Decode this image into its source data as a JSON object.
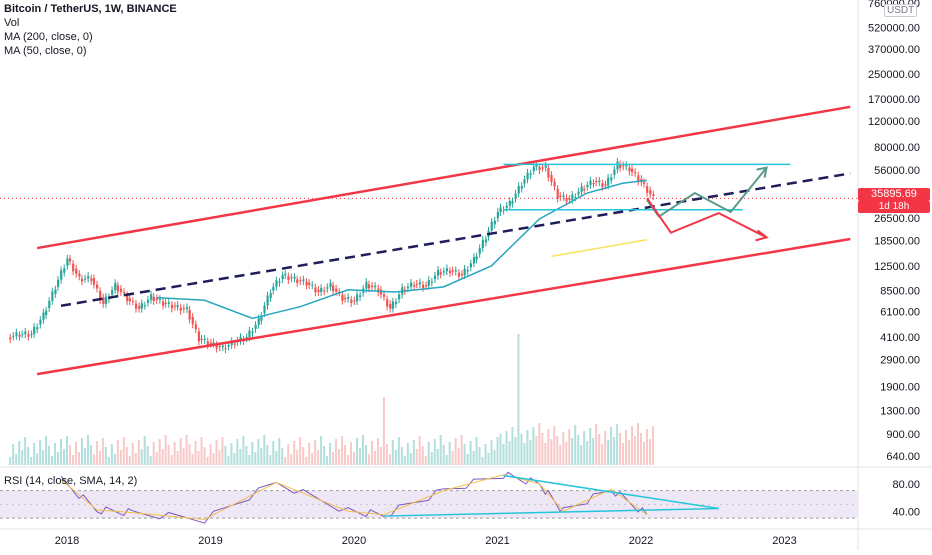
{
  "chart_data": [
    {
      "type": "candlestick",
      "title": "Bitcoin / TetherUS, 1W, BINANCE",
      "indicators": [
        "Vol",
        "MA (200, close, 0)",
        "MA (50, close, 0)"
      ],
      "y_scale": "log",
      "ylim": [
        640,
        760000
      ],
      "price_axis_ticks": [
        "760000.00",
        "520000.00",
        "370000.00",
        "250000.00",
        "170000.00",
        "120000.00",
        "80000.00",
        "56000.00",
        "37000.00",
        "26500.00",
        "18500.00",
        "12500.00",
        "8500.00",
        "6100.00",
        "4100.00",
        "2900.00",
        "1900.00",
        "1300.00",
        "900.00",
        "640.00"
      ],
      "x_ticks": [
        "2018",
        "2019",
        "2020",
        "2021",
        "2022",
        "2023"
      ],
      "currency_label": "USDT",
      "current_price": "35895.69",
      "countdown": "1d 18h",
      "price_series_approx": [
        {
          "date": "2017-08",
          "close": 4300
        },
        {
          "date": "2017-09",
          "close": 4300
        },
        {
          "date": "2017-10",
          "close": 5800
        },
        {
          "date": "2017-11",
          "close": 9000
        },
        {
          "date": "2017-12",
          "close": 14000
        },
        {
          "date": "2018-01",
          "close": 10200
        },
        {
          "date": "2018-02",
          "close": 10300
        },
        {
          "date": "2018-03",
          "close": 6900
        },
        {
          "date": "2018-04",
          "close": 9200
        },
        {
          "date": "2018-05",
          "close": 7500
        },
        {
          "date": "2018-06",
          "close": 6400
        },
        {
          "date": "2018-07",
          "close": 7700
        },
        {
          "date": "2018-08",
          "close": 7000
        },
        {
          "date": "2018-09",
          "close": 6600
        },
        {
          "date": "2018-10",
          "close": 6300
        },
        {
          "date": "2018-11",
          "close": 4000
        },
        {
          "date": "2018-12",
          "close": 3700
        },
        {
          "date": "2019-01",
          "close": 3450
        },
        {
          "date": "2019-02",
          "close": 3800
        },
        {
          "date": "2019-03",
          "close": 4100
        },
        {
          "date": "2019-04",
          "close": 5300
        },
        {
          "date": "2019-05",
          "close": 8500
        },
        {
          "date": "2019-06",
          "close": 10800
        },
        {
          "date": "2019-07",
          "close": 10100
        },
        {
          "date": "2019-08",
          "close": 9600
        },
        {
          "date": "2019-09",
          "close": 8300
        },
        {
          "date": "2019-10",
          "close": 9200
        },
        {
          "date": "2019-11",
          "close": 7550
        },
        {
          "date": "2019-12",
          "close": 7200
        },
        {
          "date": "2020-01",
          "close": 9350
        },
        {
          "date": "2020-02",
          "close": 8600
        },
        {
          "date": "2020-03",
          "close": 6400
        },
        {
          "date": "2020-04",
          "close": 8600
        },
        {
          "date": "2020-05",
          "close": 9450
        },
        {
          "date": "2020-06",
          "close": 9150
        },
        {
          "date": "2020-07",
          "close": 11300
        },
        {
          "date": "2020-08",
          "close": 11650
        },
        {
          "date": "2020-09",
          "close": 10800
        },
        {
          "date": "2020-10",
          "close": 13800
        },
        {
          "date": "2020-11",
          "close": 19700
        },
        {
          "date": "2020-12",
          "close": 29000
        },
        {
          "date": "2021-01",
          "close": 33100
        },
        {
          "date": "2021-02",
          "close": 45200
        },
        {
          "date": "2021-03",
          "close": 58800
        },
        {
          "date": "2021-04",
          "close": 57700
        },
        {
          "date": "2021-05",
          "close": 37300
        },
        {
          "date": "2021-06",
          "close": 35000
        },
        {
          "date": "2021-07",
          "close": 41500
        },
        {
          "date": "2021-08",
          "close": 47100
        },
        {
          "date": "2021-09",
          "close": 43800
        },
        {
          "date": "2021-10",
          "close": 61300
        },
        {
          "date": "2021-11",
          "close": 57000
        },
        {
          "date": "2021-12",
          "close": 46200
        },
        {
          "date": "2022-01",
          "close": 35895.69
        }
      ],
      "ma50_approx": [
        {
          "date": "2018-08",
          "v": 7600
        },
        {
          "date": "2018-12",
          "v": 7300
        },
        {
          "date": "2019-04",
          "v": 5500
        },
        {
          "date": "2019-08",
          "v": 6600
        },
        {
          "date": "2019-12",
          "v": 8600
        },
        {
          "date": "2020-04",
          "v": 8300
        },
        {
          "date": "2020-08",
          "v": 9000
        },
        {
          "date": "2020-12",
          "v": 12500
        },
        {
          "date": "2021-04",
          "v": 26000
        },
        {
          "date": "2021-08",
          "v": 39000
        },
        {
          "date": "2021-11",
          "v": 45500
        },
        {
          "date": "2022-01",
          "v": 47500
        }
      ],
      "ma200_approx": [
        {
          "date": "2021-05",
          "v": 14500
        },
        {
          "date": "2021-09",
          "v": 16500
        },
        {
          "date": "2022-01",
          "v": 18800
        }
      ],
      "drawings": {
        "channel_upper": {
          "from": {
            "date": "2017-10",
            "price": 16500
          },
          "to": {
            "date": "2023-06",
            "price": 150000
          },
          "color": "#f23645"
        },
        "channel_lower": {
          "from": {
            "date": "2017-10",
            "price": 2300
          },
          "to": {
            "date": "2023-06",
            "price": 19000
          },
          "color": "#f23645"
        },
        "channel_mid": {
          "from": {
            "date": "2017-12",
            "price": 6700
          },
          "to": {
            "date": "2023-06",
            "price": 53000
          },
          "color": "#1e1e5a",
          "style": "dashed"
        },
        "range_top": {
          "from": {
            "date": "2021-01",
            "price": 61000
          },
          "to": {
            "date": "2023-01",
            "price": 61000
          },
          "color": "#26c6da"
        },
        "range_bottom": {
          "from": {
            "date": "2021-01",
            "price": 30000
          },
          "to": {
            "date": "2022-09",
            "price": 30000
          },
          "color": "#26c6da"
        }
      }
    },
    {
      "type": "histogram",
      "title": "Vol"
    },
    {
      "type": "line",
      "title": "RSI (14, close, SMA, 14, 2)",
      "ylim": [
        20,
        100
      ],
      "y_ticks": [
        "80.00",
        "40.00"
      ],
      "band": [
        30,
        70
      ],
      "rsi_approx": [
        {
          "date": "2017-12",
          "v": 86
        },
        {
          "date": "2018-03",
          "v": 42
        },
        {
          "date": "2018-06",
          "v": 38
        },
        {
          "date": "2018-12",
          "v": 28
        },
        {
          "date": "2019-06",
          "v": 82
        },
        {
          "date": "2019-12",
          "v": 40
        },
        {
          "date": "2020-03",
          "v": 35
        },
        {
          "date": "2020-08",
          "v": 70
        },
        {
          "date": "2021-01",
          "v": 93
        },
        {
          "date": "2021-04",
          "v": 80
        },
        {
          "date": "2021-06",
          "v": 40
        },
        {
          "date": "2021-10",
          "v": 72
        },
        {
          "date": "2022-01",
          "v": 35
        }
      ]
    }
  ],
  "colors": {
    "up": "#26a69a",
    "down": "#ef5350",
    "ma50": "#26a6bf",
    "ma200": "#f5e35a",
    "rsi": "#7e57c2",
    "rsi_sma": "#f2c14e",
    "rsi_band": "#ede7f6",
    "axis_text": "#131722",
    "accent_red": "#f23645",
    "trend_cyan": "#26c6da"
  }
}
